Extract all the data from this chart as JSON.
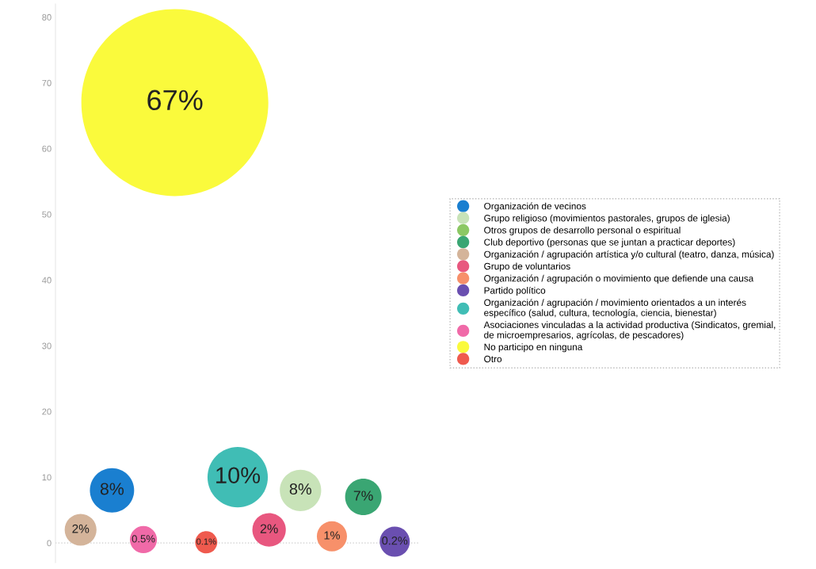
{
  "chart_data": {
    "type": "bubble",
    "categories": [
      null,
      null,
      null,
      null,
      null,
      null,
      null,
      null,
      null,
      null,
      null
    ],
    "ylim": [
      -3,
      82
    ],
    "yticks": [
      0,
      10,
      20,
      30,
      40,
      50,
      60,
      70,
      80
    ],
    "tick_labels": "y",
    "grid": false,
    "legend": "right",
    "marker": "circle",
    "ref_lines": [
      {
        "axis": "y",
        "value": 0,
        "color": "#cccccc",
        "line_style": "dotted"
      }
    ],
    "series": [
      {
        "name": "Organización de vecinos",
        "color": "#1a7fd0",
        "values": [
          null,
          8,
          null,
          null,
          null,
          null,
          null,
          null,
          null,
          null,
          null
        ],
        "sizes": [
          null,
          0.056,
          null,
          null,
          null,
          null,
          null,
          null,
          null,
          null,
          null
        ],
        "value_labels": [
          null,
          "8%",
          null,
          null,
          null,
          null,
          null,
          null,
          null,
          null,
          null
        ]
      },
      {
        "name": "Grupo religioso (movimientos pastorales, grupos de iglesia)",
        "color": "#c8e3b8",
        "values": [
          null,
          null,
          null,
          null,
          null,
          null,
          null,
          8,
          null,
          null,
          null
        ],
        "sizes": [
          null,
          null,
          null,
          null,
          null,
          null,
          null,
          0.049,
          null,
          null,
          null
        ],
        "value_labels": [
          null,
          null,
          null,
          null,
          null,
          null,
          null,
          "8%",
          null,
          null,
          null
        ]
      },
      {
        "name": "Otros grupos de desarrollo personal o espiritual",
        "color": "#8cc864",
        "values": [
          null,
          null,
          null,
          null,
          null,
          null,
          null,
          null,
          null,
          null,
          null
        ],
        "sizes": [
          null,
          null,
          null,
          null,
          null,
          null,
          null,
          null,
          null,
          null,
          null
        ],
        "value_labels": [
          null,
          null,
          null,
          null,
          null,
          null,
          null,
          null,
          null,
          null,
          null
        ]
      },
      {
        "name": "Club deportivo (personas que se juntan a practicar deportes)",
        "color": "#3aa673",
        "values": [
          null,
          null,
          null,
          null,
          null,
          null,
          null,
          null,
          null,
          7,
          null
        ],
        "sizes": [
          null,
          null,
          null,
          null,
          null,
          null,
          null,
          null,
          null,
          0.038,
          null
        ],
        "value_labels": [
          null,
          null,
          null,
          null,
          null,
          null,
          null,
          null,
          null,
          "7%",
          null
        ]
      },
      {
        "name": "Organización / agrupación artística y/o cultural (teatro, danza, música)",
        "color": "#d4b49a",
        "values": [
          2,
          null,
          null,
          null,
          null,
          null,
          null,
          null,
          null,
          null,
          null
        ],
        "sizes": [
          0.029,
          null,
          null,
          null,
          null,
          null,
          null,
          null,
          null,
          null,
          null
        ],
        "value_labels": [
          "2%",
          null,
          null,
          null,
          null,
          null,
          null,
          null,
          null,
          null,
          null
        ]
      },
      {
        "name": "Grupo de voluntarios",
        "color": "#e8577f",
        "values": [
          null,
          null,
          null,
          null,
          null,
          null,
          2,
          null,
          null,
          null,
          null
        ],
        "sizes": [
          null,
          null,
          null,
          null,
          null,
          null,
          0.032,
          null,
          null,
          null,
          null
        ],
        "value_labels": [
          null,
          null,
          null,
          null,
          null,
          null,
          "2%",
          null,
          null,
          null,
          null
        ]
      },
      {
        "name": "Organización / agrupación o movimiento que defiende una causa",
        "color": "#f7906a",
        "values": [
          null,
          null,
          null,
          null,
          null,
          null,
          null,
          null,
          1,
          null,
          null
        ],
        "sizes": [
          null,
          null,
          null,
          null,
          null,
          null,
          null,
          null,
          0.026,
          null,
          null
        ],
        "value_labels": [
          null,
          null,
          null,
          null,
          null,
          null,
          null,
          null,
          "1%",
          null,
          null
        ]
      },
      {
        "name": "Partido político",
        "color": "#6a4fb0",
        "values": [
          null,
          null,
          null,
          null,
          null,
          null,
          null,
          null,
          null,
          null,
          0.2
        ],
        "sizes": [
          null,
          null,
          null,
          null,
          null,
          null,
          null,
          null,
          null,
          null,
          0.026
        ],
        "value_labels": [
          null,
          null,
          null,
          null,
          null,
          null,
          null,
          null,
          null,
          null,
          "0.2%"
        ]
      },
      {
        "name": "Organización / agrupación / movimiento orientados a un interés\nespecífico (salud, cultura, tecnología, ciencia, bienestar)",
        "color": "#40bdb5",
        "values": [
          null,
          null,
          null,
          null,
          null,
          10,
          null,
          null,
          null,
          null,
          null
        ],
        "sizes": [
          null,
          null,
          null,
          null,
          null,
          0.104,
          null,
          null,
          null,
          null,
          null
        ],
        "value_labels": [
          null,
          null,
          null,
          null,
          null,
          "10%",
          null,
          null,
          null,
          null,
          null
        ]
      },
      {
        "name": "Asociaciones vinculadas a la actividad productiva (Sindicatos, gremial,\nde microempresarios, agrícolas, de pescadores)",
        "color": "#f06aa8",
        "values": [
          null,
          null,
          0.5,
          null,
          null,
          null,
          null,
          null,
          null,
          null,
          null
        ],
        "sizes": [
          null,
          null,
          0.021,
          null,
          null,
          null,
          null,
          null,
          null,
          null,
          null
        ],
        "value_labels": [
          null,
          null,
          "0.5%",
          null,
          null,
          null,
          null,
          null,
          null,
          null,
          null
        ]
      },
      {
        "name": "No participo en ninguna",
        "color": "#fafa3c",
        "values": [
          null,
          null,
          null,
          67,
          null,
          null,
          null,
          null,
          null,
          null,
          null
        ],
        "sizes": [
          null,
          null,
          null,
          1,
          null,
          null,
          null,
          null,
          null,
          null,
          null
        ],
        "value_labels": [
          null,
          null,
          null,
          "67%",
          null,
          null,
          null,
          null,
          null,
          null,
          null
        ]
      },
      {
        "name": "Otro",
        "color": "#ef5a4e",
        "values": [
          null,
          null,
          null,
          null,
          0.1,
          null,
          null,
          null,
          null,
          null,
          null
        ],
        "sizes": [
          null,
          null,
          null,
          null,
          0.014,
          null,
          null,
          null,
          null,
          null,
          null
        ],
        "value_labels": [
          null,
          null,
          null,
          null,
          "0.1%",
          null,
          null,
          null,
          null,
          null,
          null
        ]
      }
    ]
  }
}
